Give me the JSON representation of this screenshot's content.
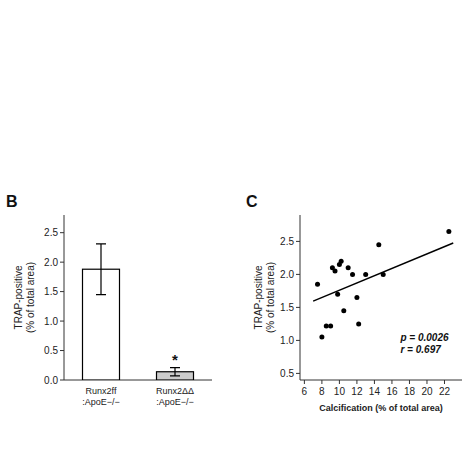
{
  "chart_data": [
    {
      "type": "bar",
      "title": "B",
      "categories": [
        "Runx2ff\n:ApoE−/−",
        "Runx2ΔΔ\n:ApoE−/−"
      ],
      "values": [
        1.88,
        0.14
      ],
      "errors": [
        0.43,
        0.07
      ],
      "colors": [
        "#ffffff",
        "#cccccc"
      ],
      "ylabel": "TRAP-positive\n(% of total area)",
      "ylim": [
        0,
        2.8
      ],
      "yticks": [
        {
          "value": 0,
          "label": "0.0"
        },
        0.5,
        {
          "value": 1,
          "label": "1.0"
        },
        1.5,
        {
          "value": 2,
          "label": "2.0"
        },
        2.5
      ],
      "annotations": [
        {
          "text": "*",
          "category": "Runx2ΔΔ\n:ApoE−/−"
        }
      ],
      "grid": false
    },
    {
      "type": "scatter",
      "title": "C",
      "series": [
        {
          "type": "scatter",
          "x": [
            7.5,
            8.0,
            8.5,
            9.0,
            9.2,
            9.5,
            9.8,
            10.0,
            10.2,
            10.5,
            11.0,
            11.5,
            12.0,
            12.2,
            13.0,
            14.5,
            15.0,
            22.5
          ],
          "values": [
            1.85,
            1.05,
            1.22,
            1.22,
            2.1,
            2.05,
            1.7,
            2.15,
            2.2,
            1.45,
            2.1,
            2.0,
            1.65,
            1.25,
            2.0,
            2.45,
            2.0,
            2.65
          ],
          "color": "#000000",
          "marker": "point"
        },
        {
          "type": "line",
          "x": [
            7.0,
            23.0
          ],
          "values": [
            1.595,
            2.475
          ],
          "color": "#000000",
          "line_style": "solid"
        }
      ],
      "xlabel": "Calcification (% of total area)",
      "ylabel": "TRAP-positive\n(% of total area)",
      "xlim": [
        5.5,
        24
      ],
      "xticks": [
        6,
        8,
        10,
        12,
        14,
        16,
        18,
        20,
        22
      ],
      "ylim": [
        0.4,
        2.9
      ],
      "yticks": [
        0.5,
        {
          "value": 1,
          "label": "1.0"
        },
        1.5,
        {
          "value": 2,
          "label": "2.0"
        },
        2.5
      ],
      "annotations": [
        {
          "text": "p = 0.0026"
        },
        {
          "text": "r = 0.697"
        }
      ],
      "grid": false
    }
  ]
}
